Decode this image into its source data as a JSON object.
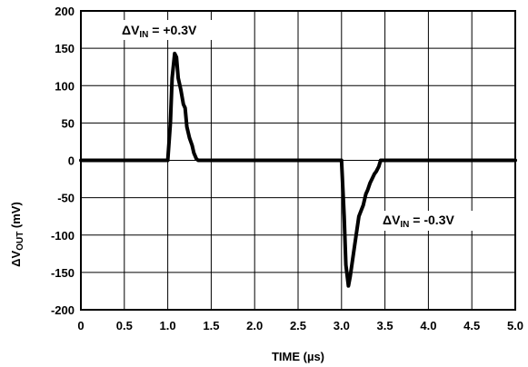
{
  "chart_data": {
    "type": "line",
    "xlabel": "TIME (µs)",
    "ylabel": {
      "prefix": "ΔV",
      "sub": "OUT",
      "suffix": " (mV)"
    },
    "xlim": [
      0,
      5.0
    ],
    "ylim": [
      -200,
      200
    ],
    "x_ticks": [
      0,
      0.5,
      1.0,
      1.5,
      2.0,
      2.5,
      3.0,
      3.5,
      4.0,
      4.5,
      5.0
    ],
    "x_tick_labels": [
      "0",
      "0.5",
      "1.0",
      "1.5",
      "2.0",
      "2.5",
      "3.0",
      "3.5",
      "4.0",
      "4.5",
      "5.0"
    ],
    "y_ticks": [
      200,
      150,
      100,
      50,
      0,
      -50,
      -100,
      -150,
      -200
    ],
    "y_tick_labels": [
      "200",
      "150",
      "100",
      "50",
      "0",
      "-50",
      "-100",
      "-150",
      "-200"
    ],
    "grid": true,
    "series": [
      {
        "x": [
          0,
          0.95,
          1.0,
          1.03,
          1.05,
          1.08,
          1.1,
          1.12,
          1.15,
          1.18,
          1.2,
          1.22,
          1.25,
          1.28,
          1.3,
          1.33,
          1.35,
          1.4,
          3.0,
          3.03,
          3.05,
          3.08,
          3.1,
          3.15,
          3.2,
          3.25,
          3.28,
          3.3,
          3.33,
          3.35,
          3.38,
          3.4,
          3.43,
          3.45,
          3.5,
          5.0
        ],
        "y": [
          0,
          0,
          0,
          50,
          110,
          143,
          138,
          110,
          95,
          75,
          70,
          45,
          30,
          20,
          10,
          2,
          0,
          0,
          0,
          -75,
          -140,
          -168,
          -155,
          -115,
          -75,
          -60,
          -45,
          -40,
          -30,
          -25,
          -18,
          -15,
          -8,
          0,
          0,
          0
        ]
      }
    ],
    "annotations": [
      {
        "base": "ΔV",
        "sub": "IN",
        "rest": " = +0.3V"
      },
      {
        "base": "ΔV",
        "sub": "IN",
        "rest": " = -0.3V"
      }
    ]
  }
}
